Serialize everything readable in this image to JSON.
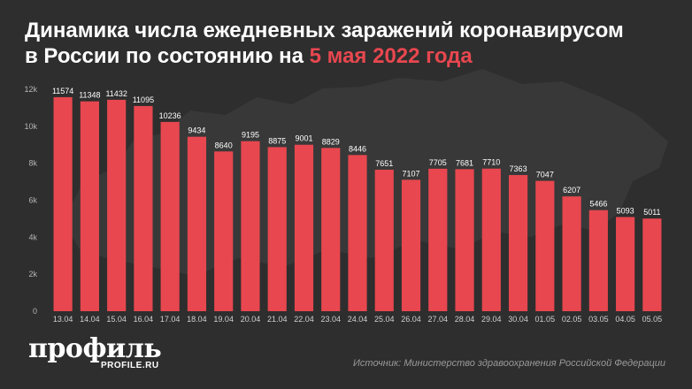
{
  "title": {
    "line1": "Динамика числа ежедневных заражений коронавирусом",
    "line2_prefix": "в России по состоянию на ",
    "line2_accent": "5 мая 2022 года"
  },
  "logo": {
    "main": "профиль",
    "sub": "PROFILE.RU"
  },
  "source": "Источник: Министерство здравоохранения Российской Федерации",
  "colors": {
    "background": "#2e2e2e",
    "bar": "#e8474f",
    "text": "#ffffff",
    "accent": "#e8474f"
  },
  "chart_data": {
    "type": "bar",
    "categories": [
      "13.04",
      "14.04",
      "15.04",
      "16.04",
      "17.04",
      "18.04",
      "19.04",
      "20.04",
      "21.04",
      "22.04",
      "23.04",
      "24.04",
      "25.04",
      "26.04",
      "27.04",
      "28.04",
      "29.04",
      "30.04",
      "01.05",
      "02.05",
      "03.05",
      "04.05",
      "05.05"
    ],
    "values": [
      11574,
      11348,
      11432,
      11095,
      10236,
      9434,
      8640,
      9195,
      8875,
      9001,
      8829,
      8446,
      7651,
      7107,
      7705,
      7681,
      7710,
      7363,
      7047,
      6207,
      5466,
      5093,
      5011
    ],
    "ylim": [
      0,
      12000
    ],
    "yticks": [
      0,
      2000,
      4000,
      6000,
      8000,
      10000,
      12000
    ],
    "ytick_labels": [
      "0",
      "2k",
      "4k",
      "6k",
      "8k",
      "10k",
      "12k"
    ],
    "xlabel": "",
    "ylabel": "",
    "grid": false,
    "data_labels": true
  }
}
